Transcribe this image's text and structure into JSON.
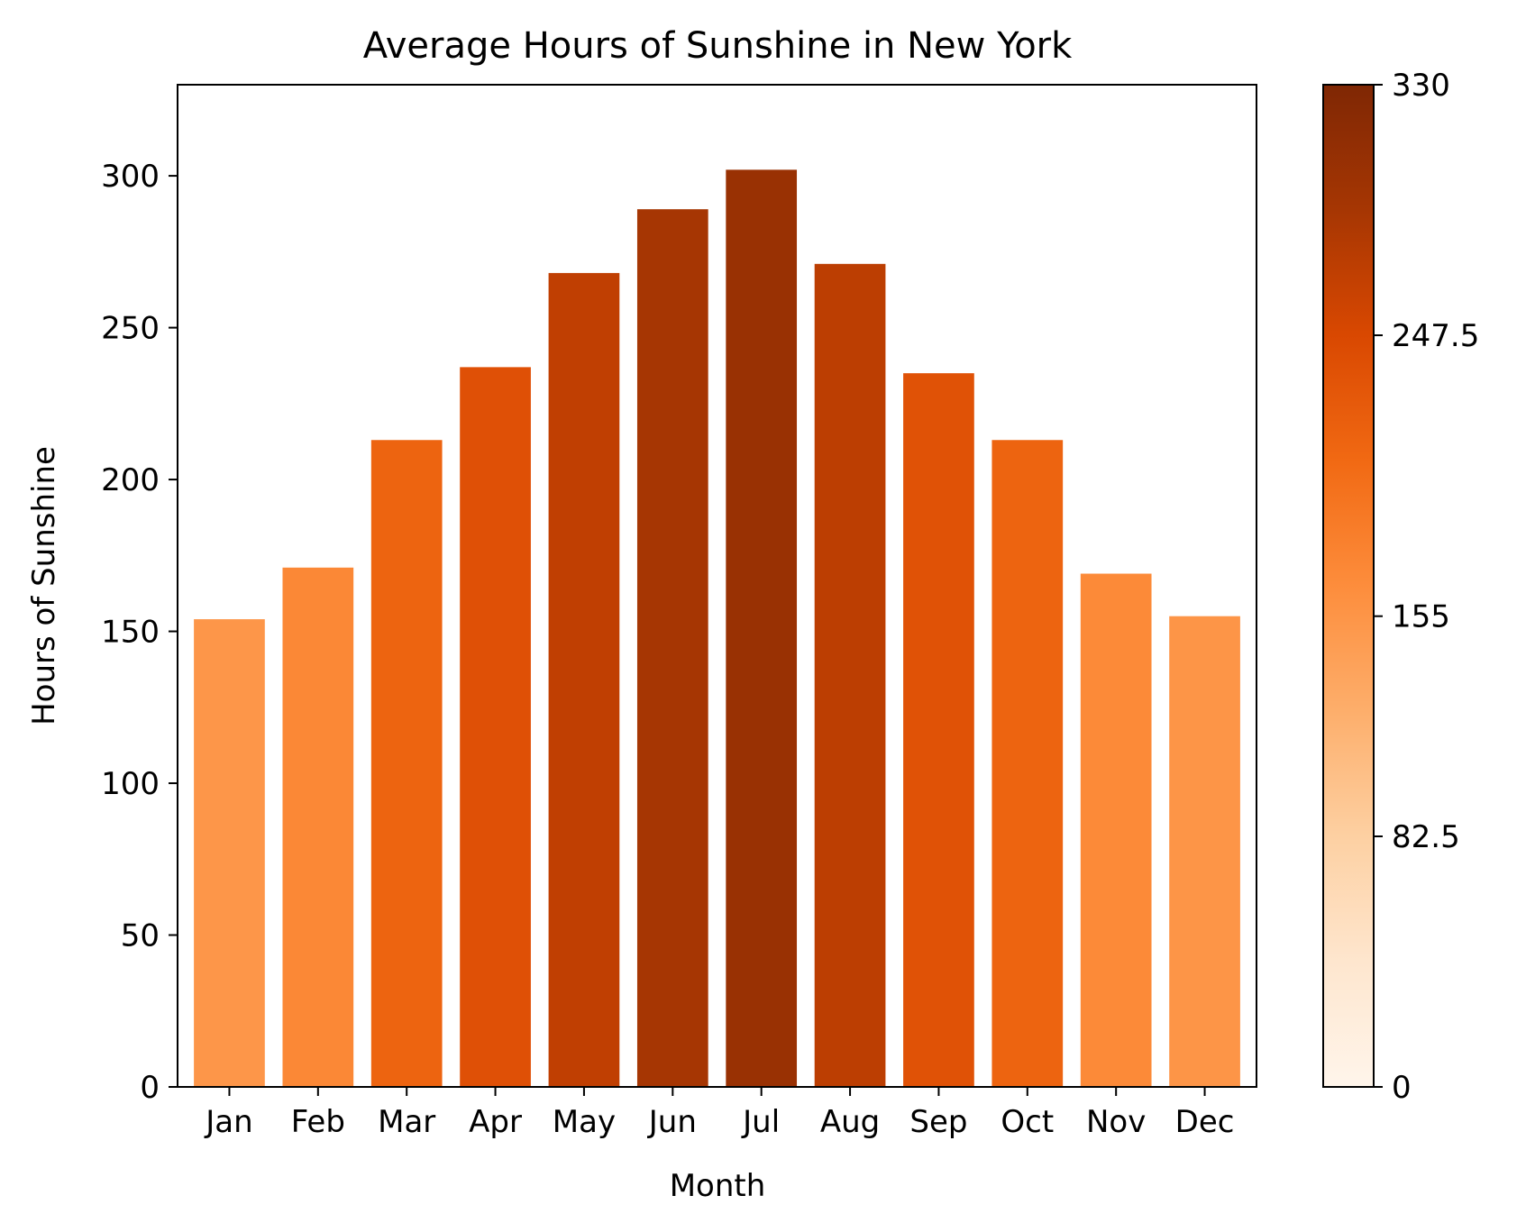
{
  "chart_data": {
    "type": "bar",
    "title": "Average Hours of Sunshine in New York",
    "xlabel": "Month",
    "ylabel": "Hours of Sunshine",
    "categories": [
      "Jan",
      "Feb",
      "Mar",
      "Apr",
      "May",
      "Jun",
      "Jul",
      "Aug",
      "Sep",
      "Oct",
      "Nov",
      "Dec"
    ],
    "values": [
      154,
      171,
      213,
      237,
      268,
      289,
      302,
      271,
      235,
      213,
      169,
      155
    ],
    "ylim": [
      0,
      330
    ],
    "yticks": [
      0,
      50,
      100,
      150,
      200,
      250,
      300
    ],
    "grid": false,
    "colormap": "Oranges",
    "colorbar": {
      "range": [
        0,
        330
      ],
      "ticks": [
        0,
        82.5,
        155,
        247.5,
        330
      ],
      "tick_labels": [
        "0",
        "82.5",
        "155",
        "247.5",
        "330"
      ]
    },
    "colors": {
      "background": "#ffffff",
      "axis": "#000000"
    }
  }
}
